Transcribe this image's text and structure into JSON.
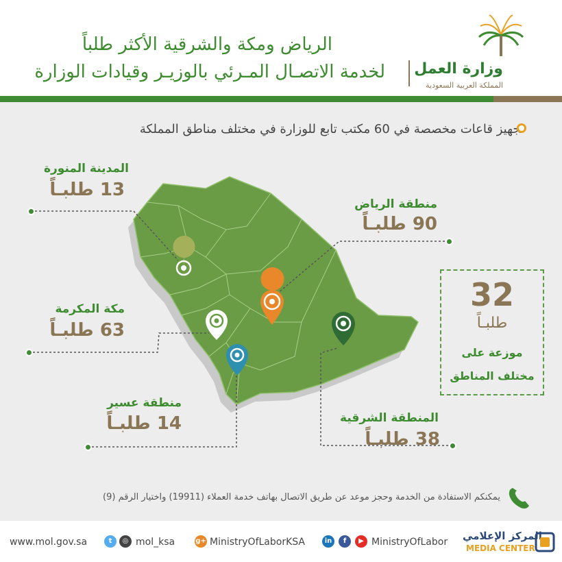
{
  "header": {
    "title_line1": "الرياض ومكة والشرقية الأكثر طلباً",
    "title_line2": "لخدمة الاتصـال المـرئي بالوزيـر  وقيادات الوزارة",
    "logo_name": "وزارة العمل",
    "logo_subtitle": "المملكة العربية السعودية"
  },
  "subtitle": "تجهيز قاعات مخصصة في 60 مكتب تابع للوزارة في مختلف مناطق المملكة",
  "regions": [
    {
      "name": "المدينة المنورة",
      "count": "13 طلبـاً",
      "value": 13
    },
    {
      "name": "منطقة الرياض",
      "count": "90 طلبـاً",
      "value": 90
    },
    {
      "name": "مكة المكرمة",
      "count": "63 طلبـاً",
      "value": 63
    },
    {
      "name": "منطقة عسير",
      "count": "14 طلبـاً",
      "value": 14
    },
    {
      "name": "المنطقة الشرقية",
      "count": "38 طلبـاً",
      "value": 38
    }
  ],
  "summary": {
    "number": "32",
    "unit": "طلبـاً",
    "line1": "موزعة على",
    "line2": "مختلف المناطق"
  },
  "phone_note": "يمكنكم الاستفادة من الخدمة وحجز موعد عن طريق الاتصال بهاتف خدمة العملاء (19911) واختيار الرقم (9)",
  "footer": {
    "website": "www.mol.gov.sa",
    "twitter_instagram": "mol_ksa",
    "googleplus": "MinistryOfLaborKSA",
    "linkedin_facebook_youtube": "MinistryOfLabor",
    "media_center_ar": "المركز الإعلامي",
    "media_center_en": "MEDIA CENTER"
  },
  "colors": {
    "brand_green": "#3e8b33",
    "brand_brown": "#8a7655",
    "map_green": "#6a9c45",
    "pin_riyadh": "#e8882a",
    "pin_madinah": "#a5b15a",
    "pin_makkah": "#ffffff",
    "pin_asir": "#2f8fae",
    "pin_eastern": "#2e6b35"
  }
}
